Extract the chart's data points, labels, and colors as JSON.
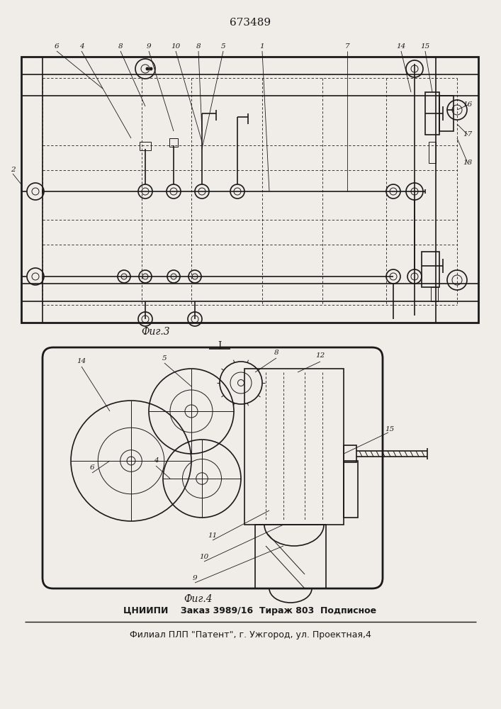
{
  "patent_number": "673489",
  "fig3_caption": "Фиг.3",
  "fig4_caption": "Фиг.4",
  "fig4_label_T": "I",
  "footer_line1": "ЦНИИПИ    Заказ 3989/16  Тираж 803  Подписное",
  "footer_line2": "Филиал ПЛП \"Патент\", г. Ужгород, ул. Проектная,4",
  "bg_color": "#f0ede8",
  "line_color": "#1a1a1a"
}
